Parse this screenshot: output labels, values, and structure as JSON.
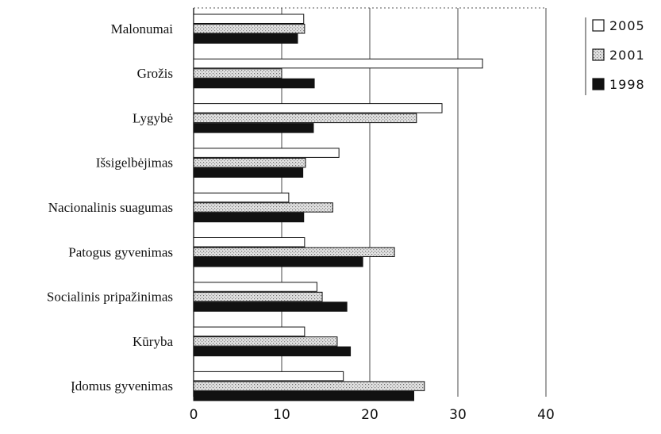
{
  "chart_data": {
    "type": "bar",
    "orientation": "horizontal",
    "title": "",
    "xlabel": "",
    "ylabel": "",
    "categories": [
      "Malonumai",
      "Grožis",
      "Lygybė",
      "Išsigelbėjimas",
      "Nacionalinis suagumas",
      "Patogus gyvenimas",
      "Socialinis pripažinimas",
      "Kūryba",
      "Įdomus gyvenimas"
    ],
    "series": [
      {
        "name": "2005",
        "values": [
          12.5,
          32.8,
          28.2,
          16.5,
          10.8,
          12.6,
          14.0,
          12.6,
          17.0
        ],
        "color": "#ffffff",
        "pattern": "none"
      },
      {
        "name": "2001",
        "values": [
          12.6,
          10.0,
          25.3,
          12.7,
          15.8,
          22.8,
          14.6,
          16.3,
          26.2
        ],
        "color": "#d6d6d6",
        "pattern": "dots"
      },
      {
        "name": "1998",
        "values": [
          11.8,
          13.7,
          13.6,
          12.4,
          12.5,
          19.2,
          17.4,
          17.8,
          25.0
        ],
        "color": "#111111",
        "pattern": "none"
      }
    ],
    "xlim": [
      0,
      40
    ],
    "xticks": [
      "0",
      "10",
      "20",
      "30",
      "40"
    ],
    "grid": "vertical",
    "legend_position": "top-right"
  }
}
